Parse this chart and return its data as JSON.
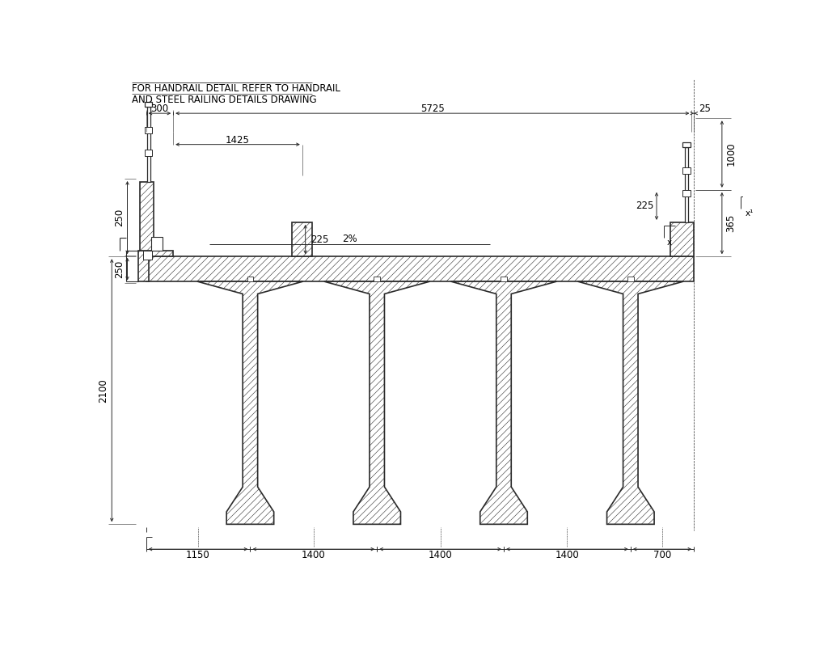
{
  "bg_color": "#ffffff",
  "line_color": "#2a2a2a",
  "title_line1": "FOR HANDRAIL DETAIL REFER TO HANDRAIL",
  "title_line2": "AND STEEL RAILING DETAILS DRAWING",
  "dim_300": "300",
  "dim_5725": "5725",
  "dim_25": "25",
  "dim_1425": "1425",
  "dim_225_left": "225",
  "dim_225_right": "225",
  "dim_1000": "1000",
  "dim_365": "365",
  "dim_2100": "2100",
  "dim_1150": "1150",
  "dim_1400a": "1400",
  "dim_1400b": "1400",
  "dim_1400c": "1400",
  "dim_700": "700",
  "slope_label": "2%",
  "x_label": "x",
  "x1_label": "x",
  "hatch": "////",
  "lw_structure": 1.2,
  "lw_dim": 0.7,
  "lw_thin": 0.5,
  "fontsize_dim": 8.5,
  "fontsize_title": 8.5
}
